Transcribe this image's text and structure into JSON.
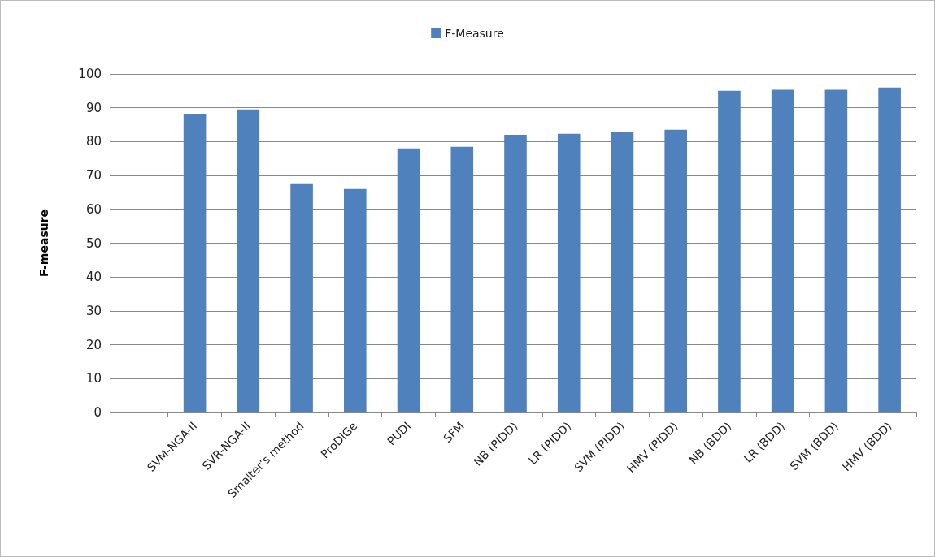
{
  "chart_data": {
    "type": "bar",
    "ylabel": "F-measure",
    "categories": [
      null,
      "SVM-NGA-II",
      "SVR-NGA-II",
      "Smalter’s method",
      "ProDiGe",
      "PUDI",
      "SFM",
      "NB (PIDD)",
      "LR (PIDD)",
      "SVM (PIDD)",
      "HMV (PIDD)",
      "NB (BDD)",
      "LR (BDD)",
      "SVM (BDD)",
      "HMV (BDD)"
    ],
    "series": [
      {
        "name": "F-Measure",
        "color": "#4f81bd",
        "values": [
          null,
          88,
          89.5,
          67.7,
          66,
          78,
          78.5,
          82,
          82.3,
          83,
          83.5,
          95,
          95.3,
          95.3,
          96
        ]
      }
    ],
    "ylim": [
      0,
      100
    ],
    "yticks": [
      0,
      10,
      20,
      30,
      40,
      50,
      60,
      70,
      80,
      90,
      100
    ],
    "grid": "y",
    "legend": "top"
  }
}
